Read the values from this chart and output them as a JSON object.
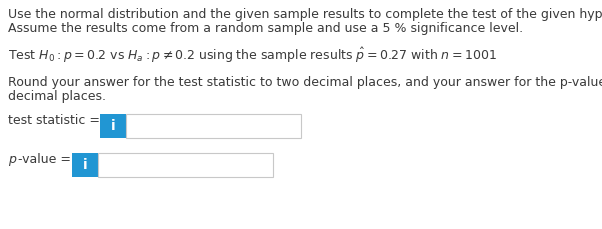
{
  "line1": "Use the normal distribution and the given sample results to complete the test of the given hypotheses.",
  "line2": "Assume the results come from a random sample and use a 5 % significance level.",
  "round_line1": "Round your answer for the test statistic to two decimal places, and your answer for the p-value to three",
  "round_line2": "decimal places.",
  "label_stat": "test statistic = ",
  "label_pval_italic": "p",
  "label_pval_rest": "-value = ",
  "icon_text": "i",
  "icon_bg_color": "#2196d3",
  "icon_text_color": "#ffffff",
  "box_border_color": "#c8c8c8",
  "box_bg_color": "#ffffff",
  "text_color": "#3a3a3a",
  "bg_color": "#ffffff",
  "font_size": 9.0
}
